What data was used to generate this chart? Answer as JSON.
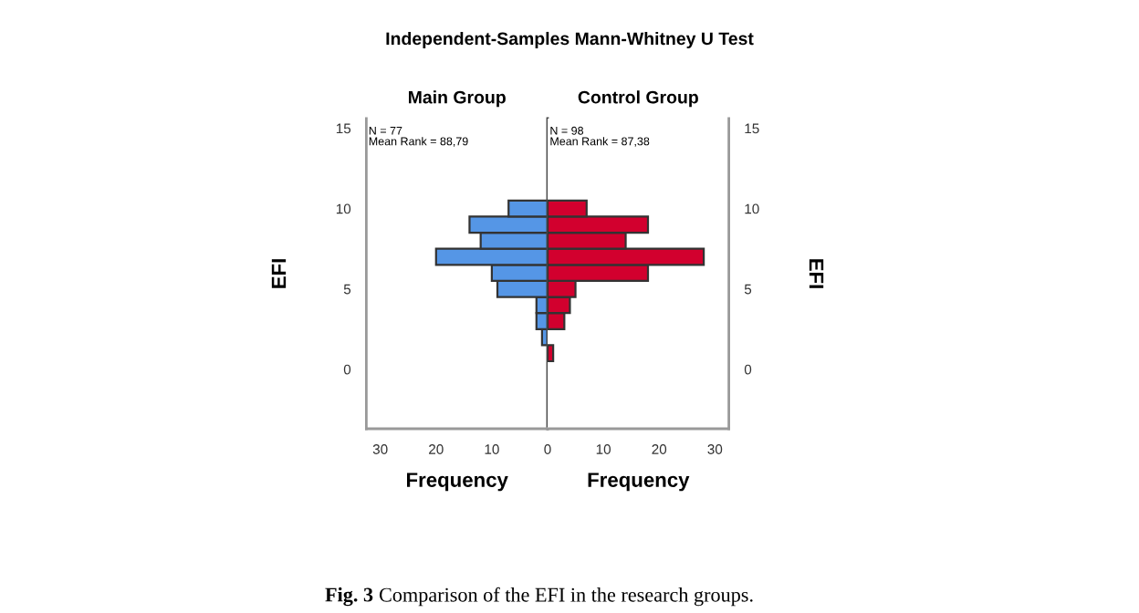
{
  "chart_data": [
    {
      "type": "histogram",
      "orientation": "horizontal",
      "title": "Independent-Samples Mann-Whitney U Test",
      "subtitle": "Main Group",
      "xlabel": "Frequency",
      "ylabel": "EFI",
      "bins": [
        1.5,
        2.5,
        3.5,
        4.5,
        5.5,
        6.5,
        7.5,
        8.5,
        9.5,
        10.5
      ],
      "values": [
        1,
        2,
        2,
        9,
        10,
        20,
        12,
        14,
        7
      ],
      "color": "#5596e6",
      "xlim": [
        32.5,
        0
      ],
      "xticks": [
        30,
        20,
        10,
        0
      ],
      "ylim": [
        -3.7,
        15.6
      ],
      "yticks": [
        0,
        5,
        10,
        15
      ],
      "annotations": [
        "N = 77\nMean Rank = 88,79",
        "Fig. 3",
        "Comparison of the EFI in the research groups."
      ]
    },
    {
      "type": "histogram",
      "orientation": "horizontal",
      "subtitle": "Control Group",
      "xlabel": "Frequency",
      "ylabel": "EFI",
      "bins": [
        0.5,
        1.5,
        2.5,
        3.5,
        4.5,
        5.5,
        6.5,
        7.5,
        8.5,
        9.5,
        10.5
      ],
      "values": [
        1,
        0,
        3,
        4,
        5,
        18,
        28,
        14,
        18,
        7
      ],
      "color": "#d2002e",
      "xlim": [
        0,
        32.5
      ],
      "xticks": [
        10,
        20,
        30
      ],
      "ylim": [
        -3.7,
        15.6
      ],
      "yticks": [
        0,
        5,
        10,
        15
      ],
      "annotations": [
        "N = 98\nMean Rank = 87,38"
      ]
    }
  ]
}
